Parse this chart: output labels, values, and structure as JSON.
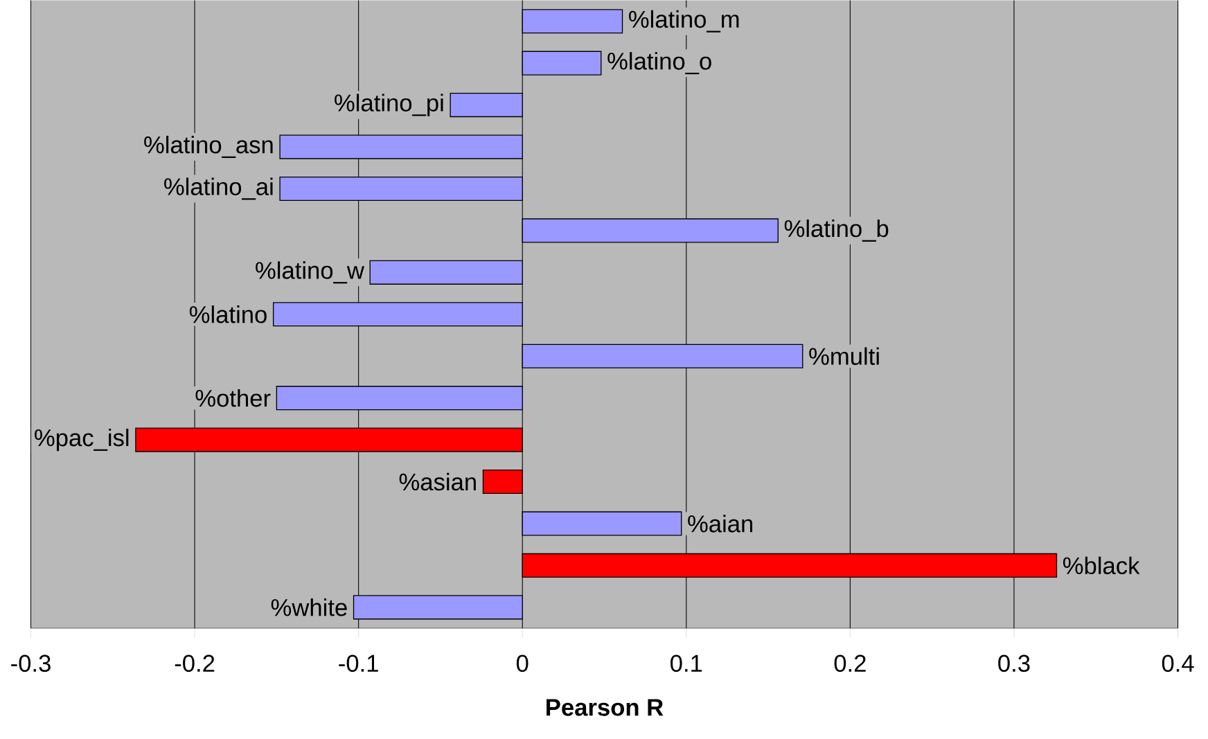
{
  "chart_data": {
    "type": "bar",
    "orientation": "horizontal",
    "xlabel": "Pearson R",
    "categories": [
      "%latino_m",
      "%latino_o",
      "%latino_pi",
      "%latino_asn",
      "%latino_ai",
      "%latino_b",
      "%latino_w",
      "%latino",
      "%multi",
      "%other",
      "%pac_isl",
      "%asian",
      "%aian",
      "%black",
      "%white"
    ],
    "values": [
      0.061,
      0.048,
      -0.044,
      -0.148,
      -0.148,
      0.156,
      -0.093,
      -0.152,
      0.171,
      -0.15,
      -0.236,
      -0.024,
      0.097,
      0.326,
      -0.103
    ],
    "colors": [
      "#9999ff",
      "#9999ff",
      "#9999ff",
      "#9999ff",
      "#9999ff",
      "#9999ff",
      "#9999ff",
      "#9999ff",
      "#9999ff",
      "#9999ff",
      "#ff0000",
      "#ff0000",
      "#9999ff",
      "#ff0000",
      "#9999ff"
    ],
    "xlim": [
      -0.3,
      0.4
    ],
    "xticks": [
      -0.3,
      -0.2,
      -0.1,
      0,
      0.1,
      0.2,
      0.3,
      0.4
    ],
    "grid": "x"
  }
}
